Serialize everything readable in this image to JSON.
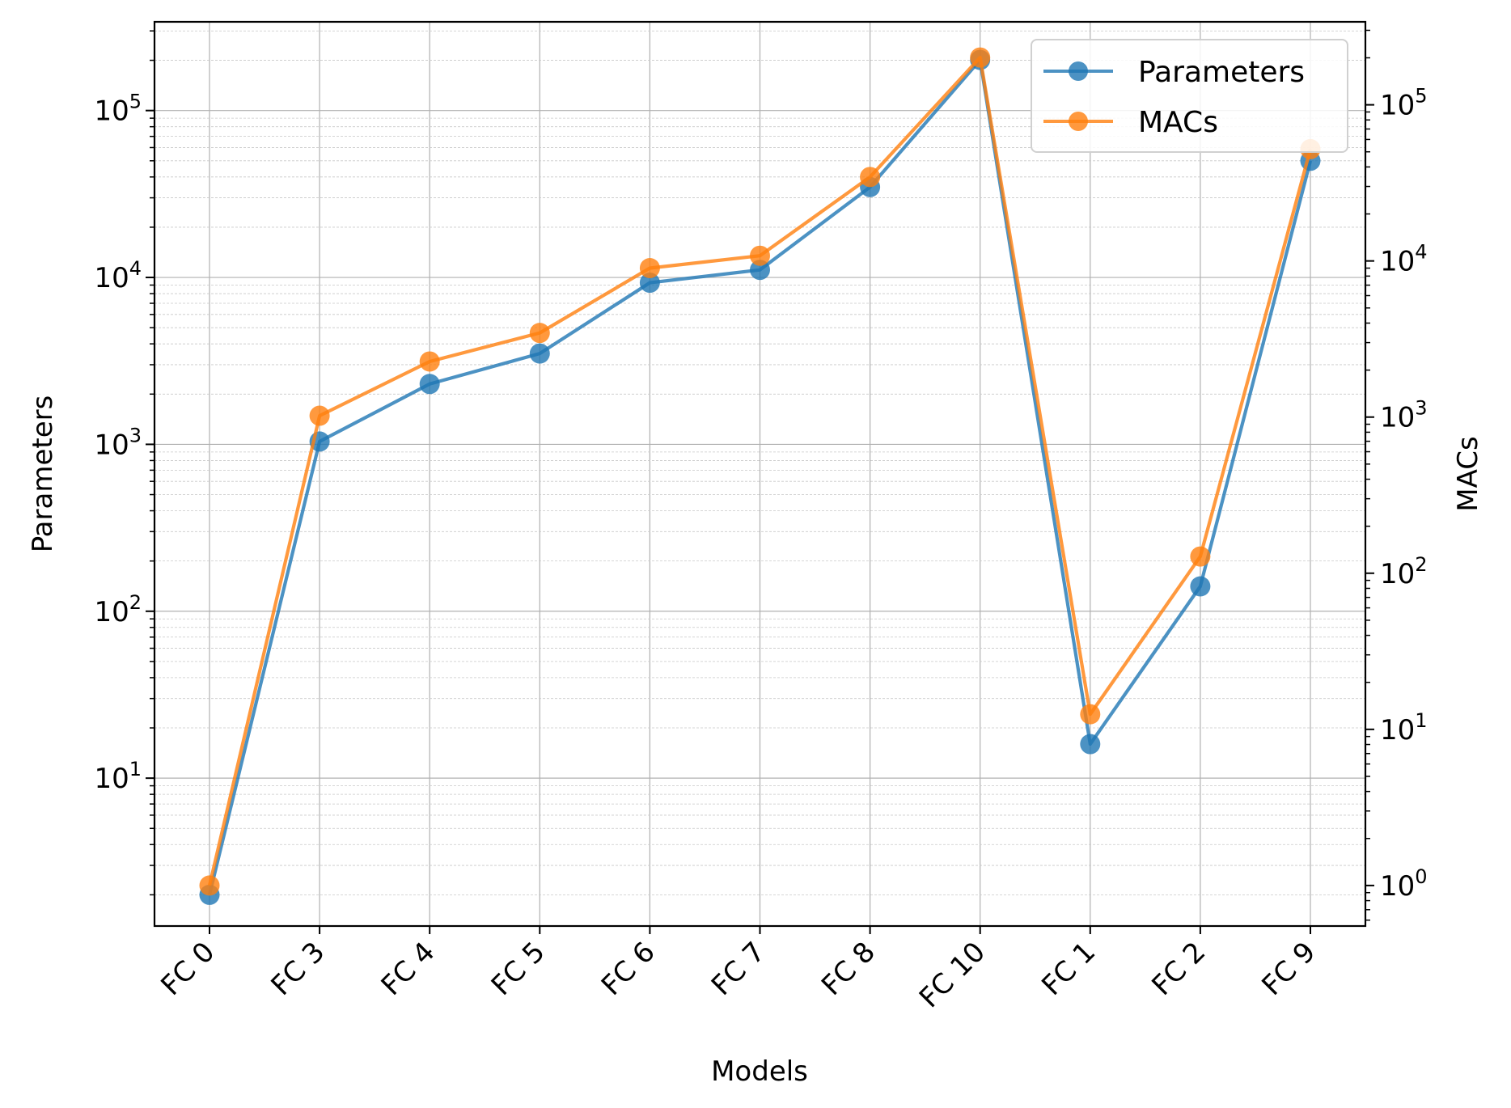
{
  "chart_data": {
    "type": "line",
    "xlabel": "Models",
    "ylabel_left": "Parameters",
    "ylabel_right": "MACs",
    "scale": "log",
    "grid": true,
    "legend_position": "top-right",
    "categories": [
      "FC 0",
      "FC 3",
      "FC 4",
      "FC 5",
      "FC 6",
      "FC 7",
      "FC 8",
      "FC 10",
      "FC 1",
      "FC 2",
      "FC 9"
    ],
    "left_axis": {
      "ylim": [
        1.3,
        340000
      ],
      "ticks": [
        {
          "value": 10,
          "label": "10",
          "exp": "1"
        },
        {
          "value": 100,
          "label": "10",
          "exp": "2"
        },
        {
          "value": 1000,
          "label": "10",
          "exp": "3"
        },
        {
          "value": 10000,
          "label": "10",
          "exp": "4"
        },
        {
          "value": 100000,
          "label": "10",
          "exp": "5"
        }
      ]
    },
    "right_axis": {
      "ylim": [
        0.55,
        340000
      ],
      "ticks": [
        {
          "value": 1,
          "label": "10",
          "exp": "0"
        },
        {
          "value": 10,
          "label": "10",
          "exp": "1"
        },
        {
          "value": 100,
          "label": "10",
          "exp": "2"
        },
        {
          "value": 1000,
          "label": "10",
          "exp": "3"
        },
        {
          "value": 10000,
          "label": "10",
          "exp": "4"
        },
        {
          "value": 100000,
          "label": "10",
          "exp": "5"
        }
      ]
    },
    "series": [
      {
        "name": "Parameters",
        "axis": "left",
        "color": "#1f77b4",
        "values": [
          2,
          1040,
          2300,
          3500,
          9300,
          11100,
          34800,
          201000,
          16,
          141,
          50000
        ]
      },
      {
        "name": "MACs",
        "axis": "right",
        "color": "#ff7f0e",
        "values": [
          1,
          1020,
          2270,
          3460,
          9000,
          10800,
          34500,
          201000,
          12.5,
          128,
          52000
        ]
      }
    ]
  }
}
